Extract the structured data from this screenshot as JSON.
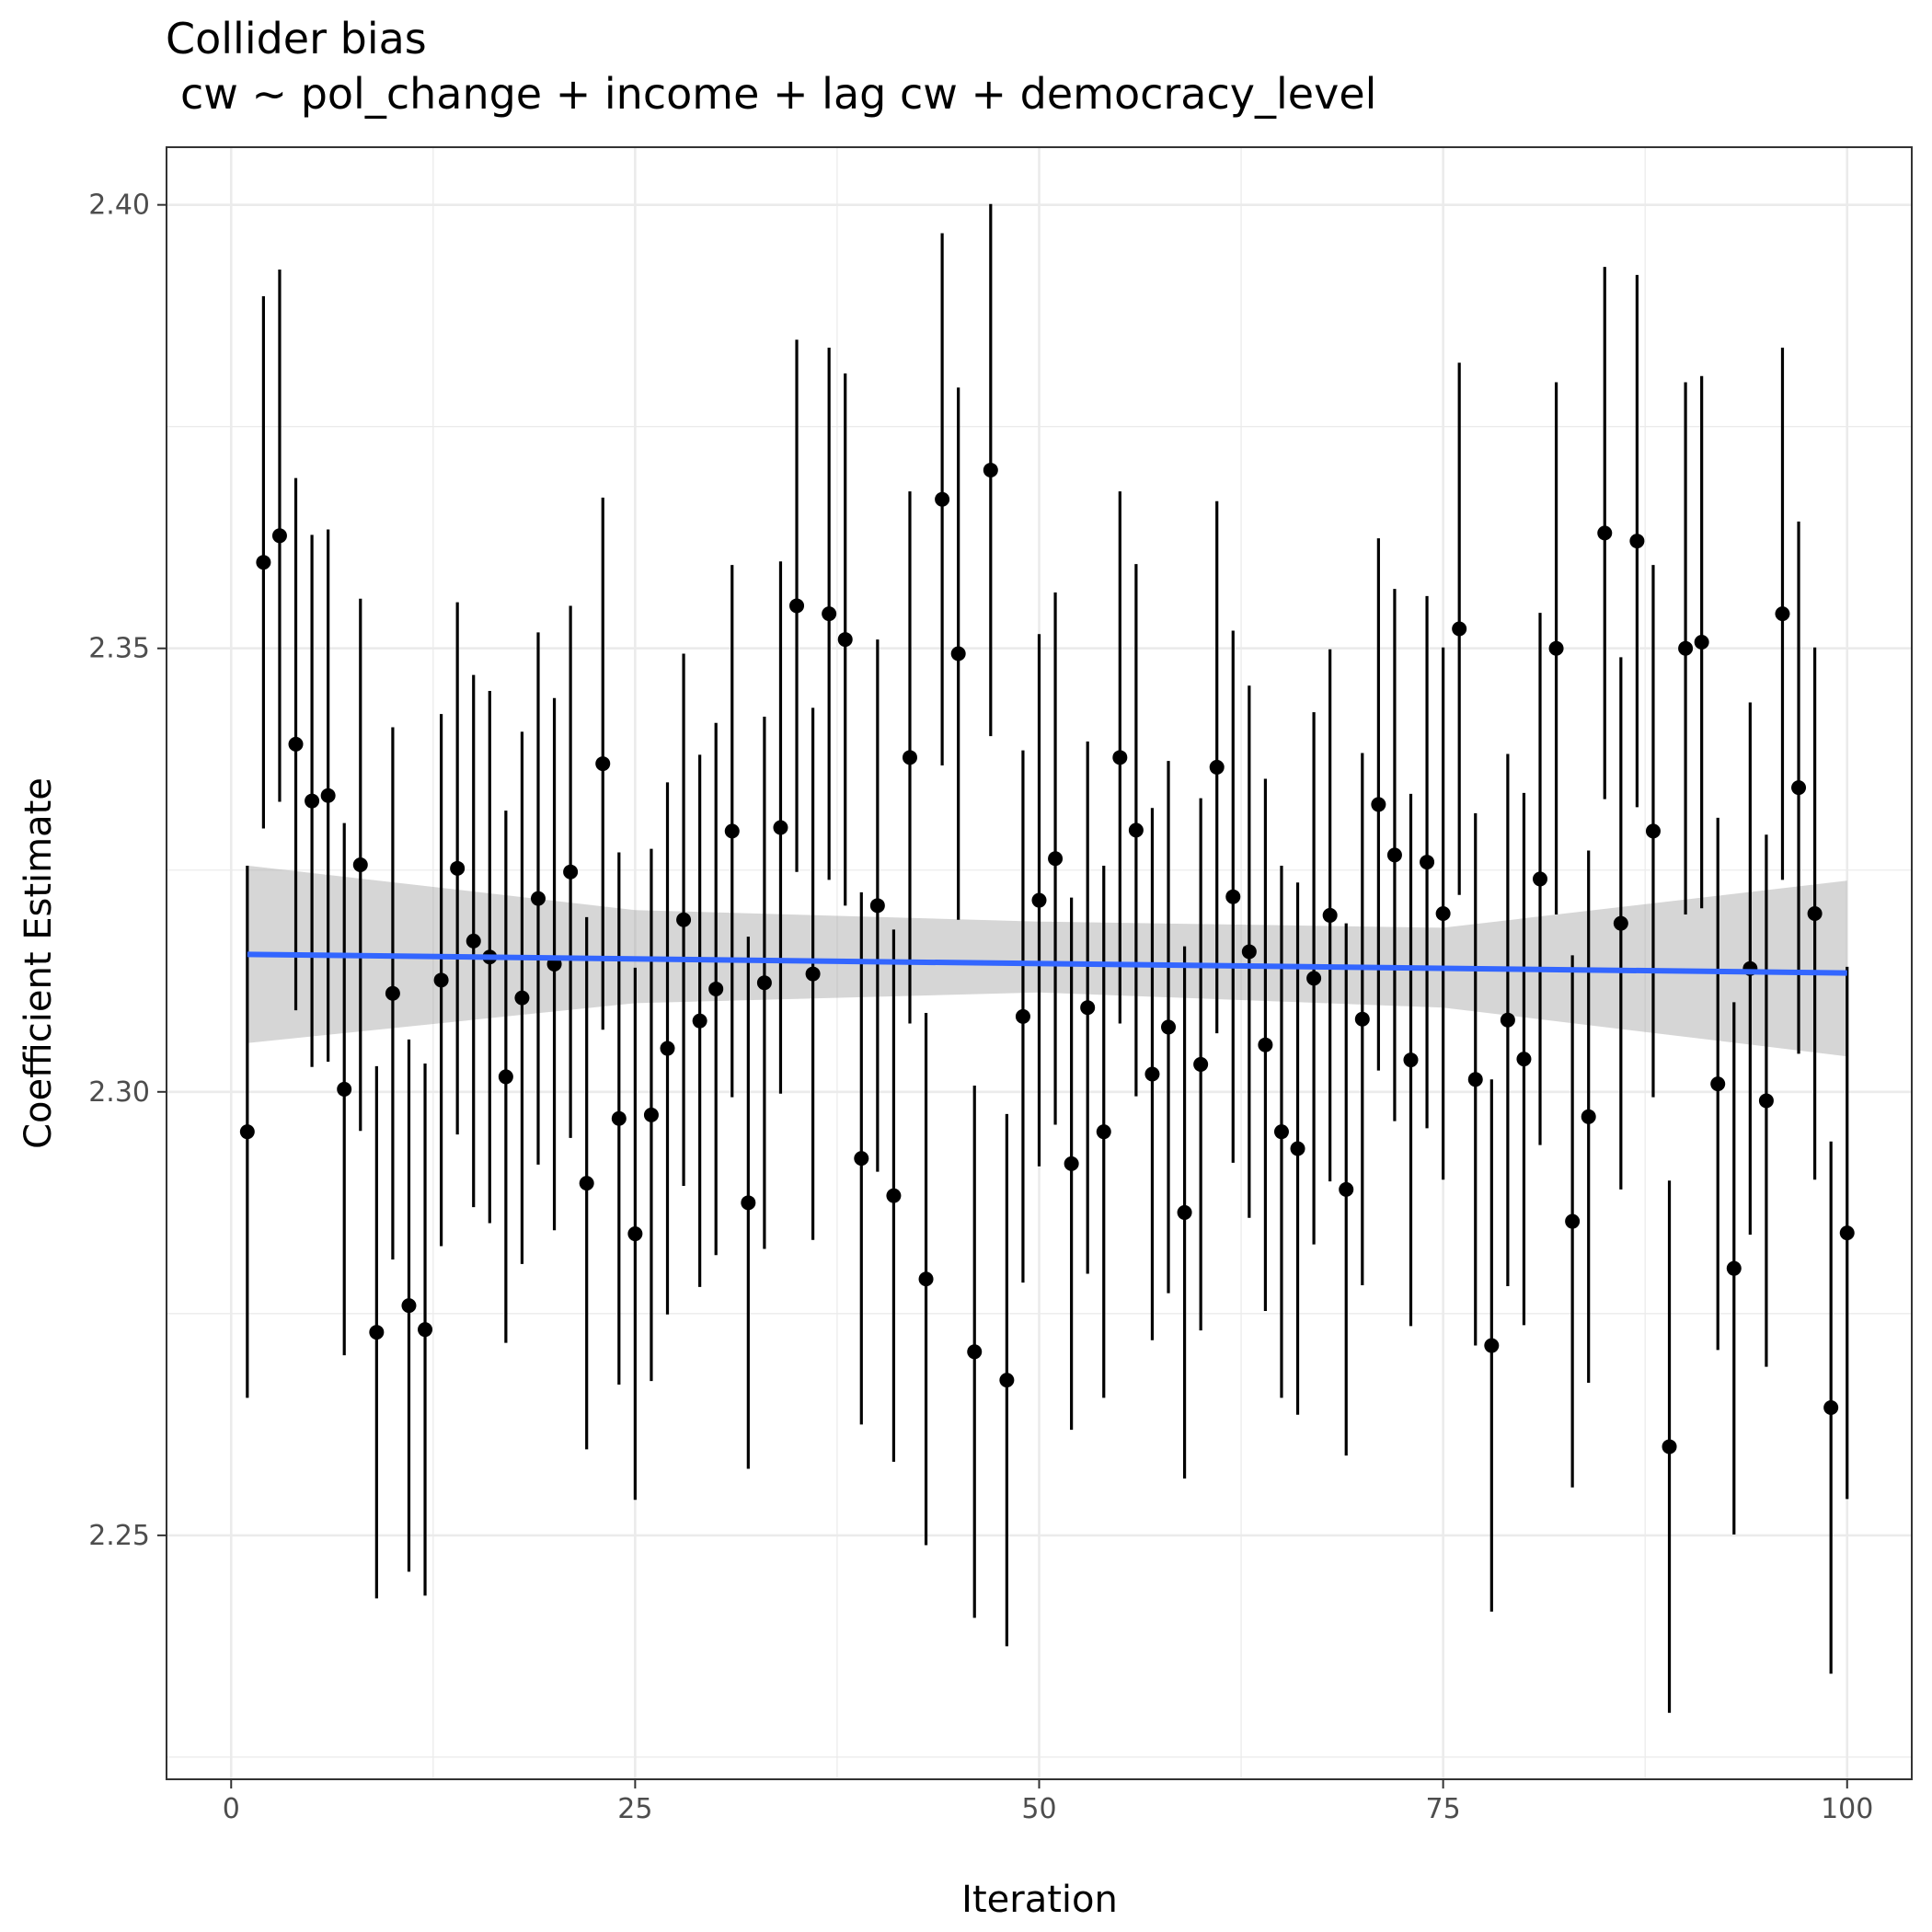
{
  "chart_data": {
    "type": "scatter",
    "title": "Collider bias",
    "subtitle": "cw ~ pol_change + income + lag cw + democracy_level",
    "xlabel": "Iteration",
    "ylabel": "Coefficient Estimate",
    "xlim": [
      -4,
      104
    ],
    "ylim": [
      2.2225,
      2.4065
    ],
    "x_ticks": [
      0,
      25,
      50,
      75,
      100
    ],
    "x_tick_labels": [
      "0",
      "25",
      "50",
      "75",
      "100"
    ],
    "y_ticks": [
      2.25,
      2.3,
      2.35,
      2.4
    ],
    "y_tick_labels": [
      "2.25",
      "2.30",
      "2.35",
      "2.40"
    ],
    "grid": true,
    "series": [
      {
        "name": "estimates",
        "style": "point-with-vertical-error-bar",
        "color": "#000000",
        "x": [
          1,
          2,
          3,
          4,
          5,
          6,
          7,
          8,
          9,
          10,
          11,
          12,
          13,
          14,
          15,
          16,
          17,
          18,
          19,
          20,
          21,
          22,
          23,
          24,
          25,
          26,
          27,
          28,
          29,
          30,
          31,
          32,
          33,
          34,
          35,
          36,
          37,
          38,
          39,
          40,
          41,
          42,
          43,
          44,
          45,
          46,
          47,
          48,
          49,
          50,
          51,
          52,
          53,
          54,
          55,
          56,
          57,
          58,
          59,
          60,
          61,
          62,
          63,
          64,
          65,
          66,
          67,
          68,
          69,
          70,
          71,
          72,
          73,
          74,
          75,
          76,
          77,
          78,
          79,
          80,
          81,
          82,
          83,
          84,
          85,
          86,
          87,
          88,
          89,
          90,
          91,
          92,
          93,
          94,
          95,
          96,
          97,
          98,
          99,
          100
        ],
        "y": [
          2.2955,
          2.3597,
          2.3627,
          2.3392,
          2.3328,
          2.3334,
          2.3003,
          2.3256,
          2.2729,
          2.3111,
          2.2759,
          2.2732,
          2.3126,
          2.3252,
          2.317,
          2.3152,
          2.3017,
          2.3106,
          2.3218,
          2.3144,
          2.3248,
          2.2897,
          2.337,
          2.297,
          2.284,
          2.2974,
          2.3049,
          2.3194,
          2.308,
          2.3116,
          2.3294,
          2.2875,
          2.3123,
          2.3298,
          2.3548,
          2.3133,
          2.3539,
          2.351,
          2.2925,
          2.321,
          2.2883,
          2.3377,
          2.2789,
          2.3668,
          2.3494,
          2.2707,
          2.3701,
          2.2675,
          2.3085,
          2.3216,
          2.3263,
          2.2919,
          2.3095,
          2.2955,
          2.3377,
          2.3295,
          2.302,
          2.3073,
          2.2864,
          2.3031,
          2.3366,
          2.322,
          2.3158,
          2.3053,
          2.2955,
          2.2936,
          2.3128,
          2.3199,
          2.289,
          2.3082,
          2.3324,
          2.3267,
          2.3036,
          2.3259,
          2.3201,
          2.3522,
          2.3014,
          2.2714,
          2.3081,
          2.3037,
          2.324,
          2.35,
          2.2854,
          2.2972,
          2.363,
          2.319,
          2.3621,
          2.3294,
          2.26,
          2.35,
          2.3507,
          2.3009,
          2.2801,
          2.3139,
          2.299,
          2.3539,
          2.3343,
          2.3201,
          2.2644,
          2.2841
        ],
        "lower": [
          2.2655,
          2.3297,
          2.3327,
          2.3092,
          2.3028,
          2.3034,
          2.2703,
          2.2956,
          2.2429,
          2.2811,
          2.2459,
          2.2432,
          2.2826,
          2.2952,
          2.287,
          2.2852,
          2.2717,
          2.2806,
          2.2918,
          2.2844,
          2.2948,
          2.2597,
          2.307,
          2.267,
          2.254,
          2.2674,
          2.2749,
          2.2894,
          2.278,
          2.2816,
          2.2994,
          2.2575,
          2.2823,
          2.2998,
          2.3248,
          2.2833,
          2.3239,
          2.321,
          2.2625,
          2.291,
          2.2583,
          2.3077,
          2.2489,
          2.3368,
          2.3194,
          2.2407,
          2.3401,
          2.2375,
          2.2785,
          2.2916,
          2.2963,
          2.2619,
          2.2795,
          2.2655,
          2.3077,
          2.2995,
          2.272,
          2.2773,
          2.2564,
          2.2731,
          2.3066,
          2.292,
          2.2858,
          2.2753,
          2.2655,
          2.2636,
          2.2828,
          2.2899,
          2.259,
          2.2782,
          2.3024,
          2.2967,
          2.2736,
          2.2959,
          2.2901,
          2.3222,
          2.2714,
          2.2414,
          2.2781,
          2.2737,
          2.294,
          2.32,
          2.2554,
          2.2672,
          2.333,
          2.289,
          2.3321,
          2.2994,
          2.23,
          2.32,
          2.3207,
          2.2709,
          2.2501,
          2.2839,
          2.269,
          2.3239,
          2.3043,
          2.2901,
          2.2344,
          2.2541
        ],
        "upper": [
          2.3255,
          2.3897,
          2.3927,
          2.3692,
          2.3628,
          2.3634,
          2.3303,
          2.3556,
          2.3029,
          2.3411,
          2.3059,
          2.3032,
          2.3426,
          2.3552,
          2.347,
          2.3452,
          2.3317,
          2.3406,
          2.3518,
          2.3444,
          2.3548,
          2.3197,
          2.367,
          2.327,
          2.314,
          2.3274,
          2.3349,
          2.3494,
          2.338,
          2.3416,
          2.3594,
          2.3175,
          2.3423,
          2.3598,
          2.3848,
          2.3433,
          2.3839,
          2.381,
          2.3225,
          2.351,
          2.3183,
          2.3677,
          2.3089,
          2.3968,
          2.3794,
          2.3007,
          2.4001,
          2.2975,
          2.3385,
          2.3516,
          2.3563,
          2.3219,
          2.3395,
          2.3255,
          2.3677,
          2.3595,
          2.332,
          2.3373,
          2.3164,
          2.3331,
          2.3666,
          2.352,
          2.3458,
          2.3353,
          2.3255,
          2.3236,
          2.3428,
          2.3499,
          2.319,
          2.3382,
          2.3624,
          2.3567,
          2.3336,
          2.3559,
          2.3501,
          2.3822,
          2.3314,
          2.3014,
          2.3381,
          2.3337,
          2.354,
          2.38,
          2.3154,
          2.3272,
          2.393,
          2.349,
          2.3921,
          2.3594,
          2.29,
          2.38,
          2.3807,
          2.3309,
          2.3101,
          2.3439,
          2.329,
          2.3839,
          2.3643,
          2.3501,
          2.2944,
          2.3141
        ]
      },
      {
        "name": "linear fit",
        "style": "line",
        "color": "#3366FF",
        "x": [
          1,
          100
        ],
        "y": [
          2.3155,
          2.3134
        ]
      },
      {
        "name": "confidence band",
        "style": "ribbon",
        "color": "#999999",
        "x": [
          1,
          25,
          50,
          75,
          100
        ],
        "lower": [
          2.3055,
          2.31,
          2.3112,
          2.3095,
          2.304
        ],
        "upper": [
          2.3255,
          2.3205,
          2.3192,
          2.3185,
          2.3238
        ]
      }
    ]
  }
}
